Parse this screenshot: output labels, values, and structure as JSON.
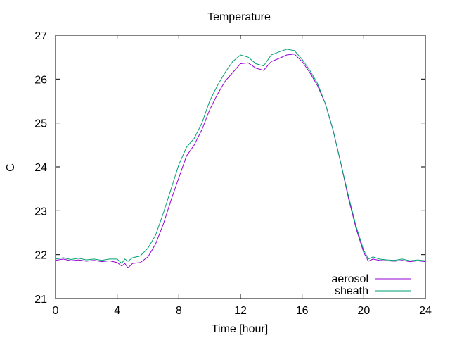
{
  "chart_data": {
    "type": "line",
    "title": "Temperature",
    "xlabel": "Time [hour]",
    "ylabel": "C",
    "xlim": [
      0,
      24
    ],
    "ylim": [
      21,
      27
    ],
    "xticks": [
      0,
      4,
      8,
      12,
      16,
      20,
      24
    ],
    "yticks": [
      21,
      22,
      23,
      24,
      25,
      26,
      27
    ],
    "grid": false,
    "legend_position": "bottom-right",
    "series": [
      {
        "name": "aerosol",
        "color": "#9400d3",
        "points": [
          [
            0,
            21.87
          ],
          [
            0.5,
            21.9
          ],
          [
            1,
            21.86
          ],
          [
            1.5,
            21.88
          ],
          [
            2,
            21.85
          ],
          [
            2.5,
            21.87
          ],
          [
            3,
            21.84
          ],
          [
            3.5,
            21.86
          ],
          [
            4,
            21.82
          ],
          [
            4.3,
            21.74
          ],
          [
            4.5,
            21.8
          ],
          [
            4.7,
            21.7
          ],
          [
            5,
            21.8
          ],
          [
            5.5,
            21.82
          ],
          [
            6,
            21.95
          ],
          [
            6.5,
            22.25
          ],
          [
            7,
            22.7
          ],
          [
            7.5,
            23.25
          ],
          [
            8,
            23.75
          ],
          [
            8.5,
            24.25
          ],
          [
            9,
            24.5
          ],
          [
            9.5,
            24.85
          ],
          [
            10,
            25.3
          ],
          [
            10.5,
            25.65
          ],
          [
            11,
            25.95
          ],
          [
            11.5,
            26.15
          ],
          [
            12,
            26.35
          ],
          [
            12.5,
            26.37
          ],
          [
            13,
            26.25
          ],
          [
            13.5,
            26.2
          ],
          [
            14,
            26.4
          ],
          [
            14.5,
            26.47
          ],
          [
            15,
            26.55
          ],
          [
            15.5,
            26.57
          ],
          [
            16,
            26.4
          ],
          [
            16.5,
            26.15
          ],
          [
            17,
            25.85
          ],
          [
            17.5,
            25.45
          ],
          [
            18,
            24.85
          ],
          [
            18.5,
            24.1
          ],
          [
            19,
            23.3
          ],
          [
            19.5,
            22.6
          ],
          [
            20,
            22.05
          ],
          [
            20.3,
            21.85
          ],
          [
            20.6,
            21.9
          ],
          [
            21,
            21.87
          ],
          [
            21.5,
            21.86
          ],
          [
            22,
            21.85
          ],
          [
            22.5,
            21.87
          ],
          [
            23,
            21.84
          ],
          [
            23.5,
            21.86
          ],
          [
            24,
            21.84
          ]
        ]
      },
      {
        "name": "sheath",
        "color": "#009e73",
        "points": [
          [
            0,
            21.9
          ],
          [
            0.5,
            21.93
          ],
          [
            1,
            21.89
          ],
          [
            1.5,
            21.92
          ],
          [
            2,
            21.88
          ],
          [
            2.5,
            21.9
          ],
          [
            3,
            21.87
          ],
          [
            3.5,
            21.9
          ],
          [
            4,
            21.9
          ],
          [
            4.3,
            21.8
          ],
          [
            4.5,
            21.9
          ],
          [
            4.7,
            21.85
          ],
          [
            5,
            21.93
          ],
          [
            5.5,
            21.97
          ],
          [
            6,
            22.15
          ],
          [
            6.5,
            22.45
          ],
          [
            7,
            22.95
          ],
          [
            7.5,
            23.5
          ],
          [
            8,
            24.05
          ],
          [
            8.5,
            24.45
          ],
          [
            9,
            24.65
          ],
          [
            9.5,
            25.0
          ],
          [
            10,
            25.5
          ],
          [
            10.5,
            25.85
          ],
          [
            11,
            26.15
          ],
          [
            11.5,
            26.4
          ],
          [
            12,
            26.55
          ],
          [
            12.5,
            26.5
          ],
          [
            13,
            26.35
          ],
          [
            13.5,
            26.3
          ],
          [
            14,
            26.55
          ],
          [
            14.5,
            26.62
          ],
          [
            15,
            26.68
          ],
          [
            15.5,
            26.65
          ],
          [
            16,
            26.45
          ],
          [
            16.5,
            26.2
          ],
          [
            17,
            25.9
          ],
          [
            17.5,
            25.45
          ],
          [
            18,
            24.85
          ],
          [
            18.5,
            24.1
          ],
          [
            19,
            23.35
          ],
          [
            19.5,
            22.65
          ],
          [
            20,
            22.1
          ],
          [
            20.3,
            21.9
          ],
          [
            20.6,
            21.95
          ],
          [
            21,
            21.9
          ],
          [
            21.5,
            21.88
          ],
          [
            22,
            21.87
          ],
          [
            22.5,
            21.9
          ],
          [
            23,
            21.86
          ],
          [
            23.5,
            21.88
          ],
          [
            24,
            21.86
          ]
        ]
      }
    ]
  }
}
